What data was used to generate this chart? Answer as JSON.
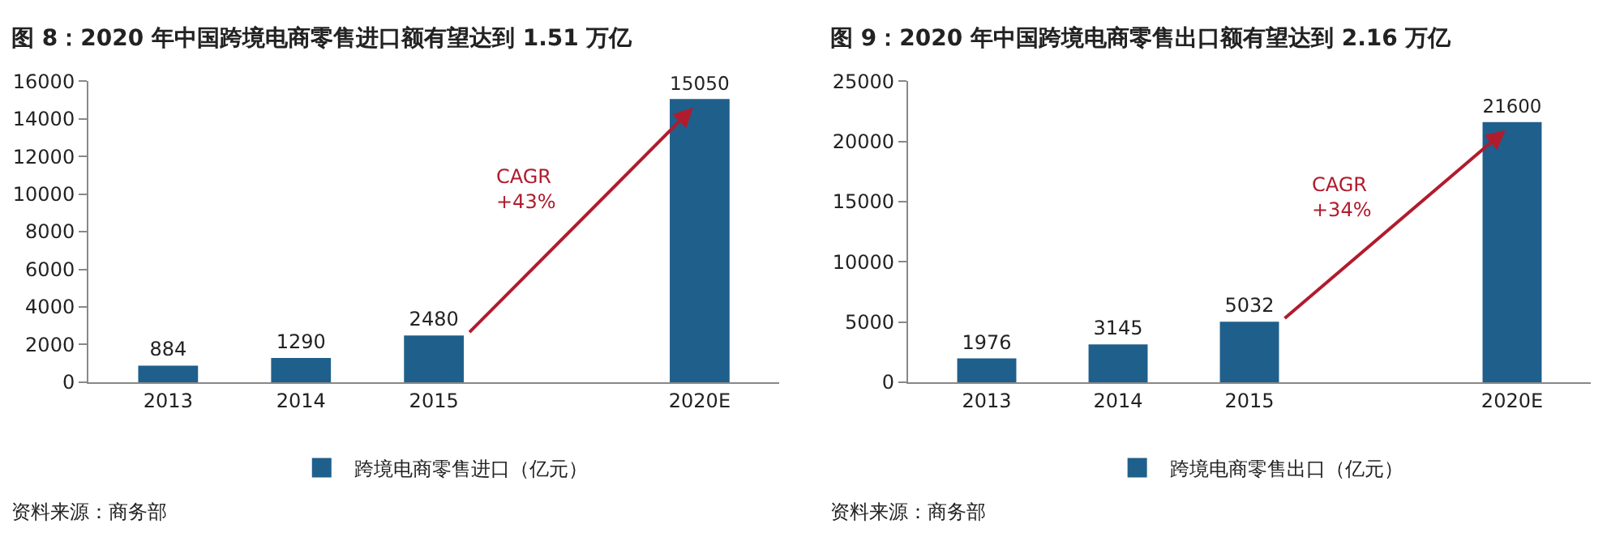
{
  "chart_data": [
    {
      "type": "bar",
      "title": "图 8：2020 年中国跨境电商零售进口额有望达到 1.51 万亿",
      "categories": [
        "2013",
        "2014",
        "2015",
        null,
        "2020E"
      ],
      "series": [
        {
          "name": "跨境电商零售进口（亿元）",
          "color": "#1f5f8b",
          "values": [
            884,
            1290,
            2480,
            null,
            15050
          ]
        }
      ],
      "ylim": [
        0,
        16000
      ],
      "yticks": [
        0,
        2000,
        4000,
        6000,
        8000,
        10000,
        12000,
        14000,
        16000
      ],
      "data_labels": true,
      "legend": "bottom",
      "grid": false,
      "annotations": [
        "CAGR\n+43%",
        "资料来源：商务部"
      ]
    },
    {
      "type": "bar",
      "title": "图 9：2020 年中国跨境电商零售出口额有望达到 2.16 万亿",
      "categories": [
        "2013",
        "2014",
        "2015",
        null,
        "2020E"
      ],
      "series": [
        {
          "name": "跨境电商零售出口（亿元）",
          "color": "#1f5f8b",
          "values": [
            1976,
            3145,
            5032,
            null,
            21600
          ]
        }
      ],
      "ylim": [
        0,
        25000
      ],
      "yticks": [
        0,
        5000,
        10000,
        15000,
        20000,
        25000
      ],
      "data_labels": true,
      "legend": "bottom",
      "grid": false,
      "annotations": [
        "CAGR\n+34%",
        "资料来源：商务部"
      ]
    }
  ]
}
